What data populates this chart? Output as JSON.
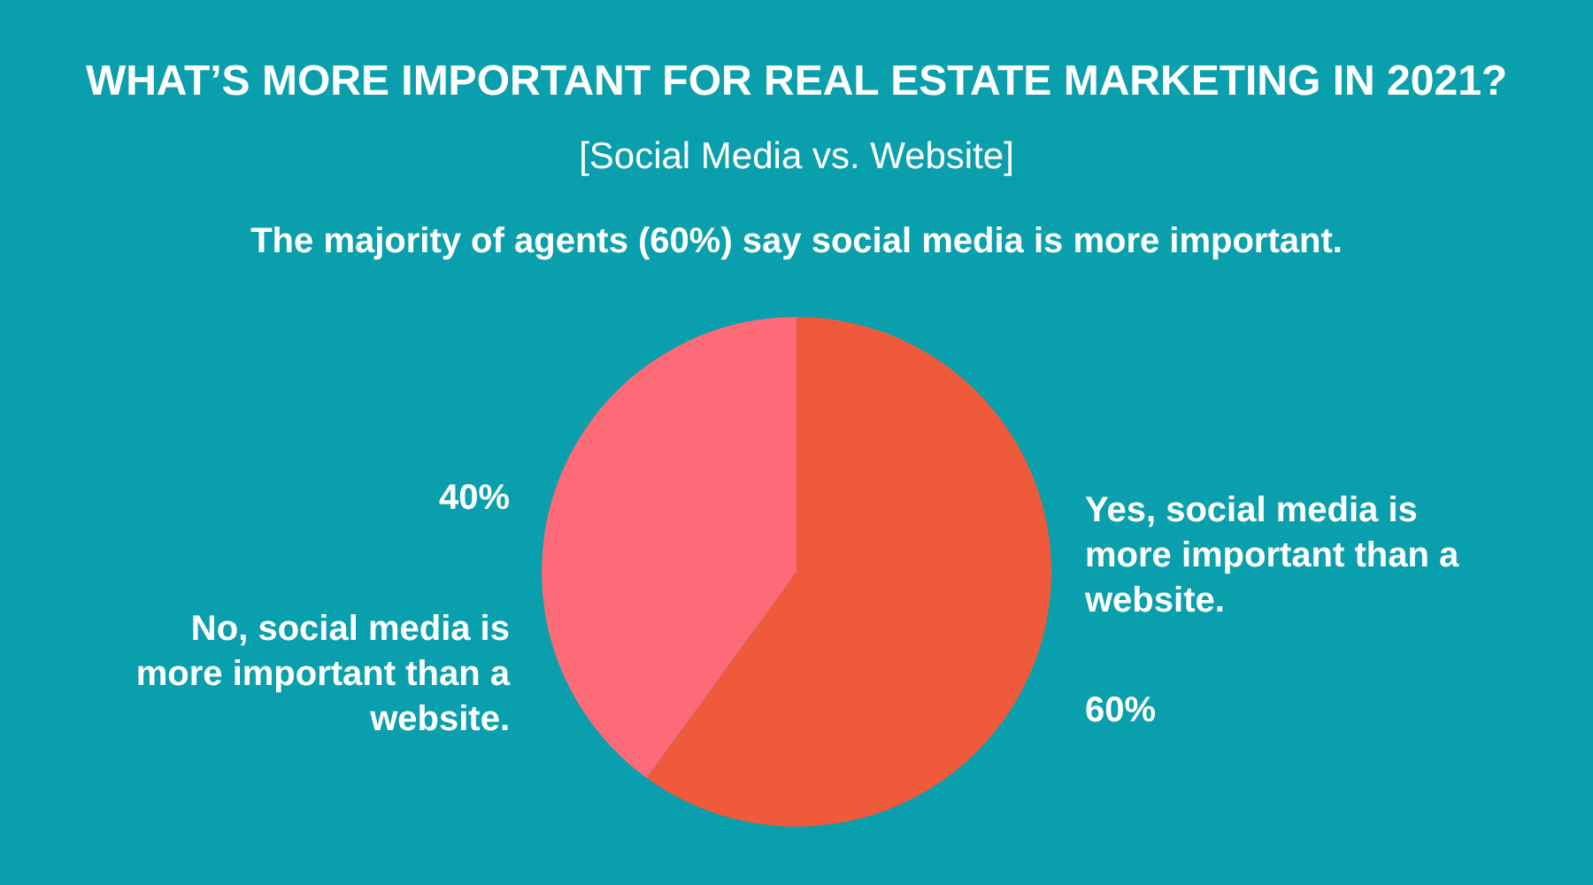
{
  "chart_data": {
    "type": "pie",
    "title": "WHAT’S MORE IMPORTANT FOR REAL ESTATE MARKETING IN 2021?",
    "subtitle": "[Social Media vs. Website]",
    "annotations": [
      "The majority of agents (60%) say social media is more important."
    ],
    "categories": [
      "Yes, social media is more important than a website.",
      "No, social media is more important than a website."
    ],
    "values": [
      60,
      40
    ],
    "colors": [
      "#ee5a3a",
      "#fd6b78"
    ],
    "value_labels": [
      "60%",
      "40%"
    ]
  }
}
